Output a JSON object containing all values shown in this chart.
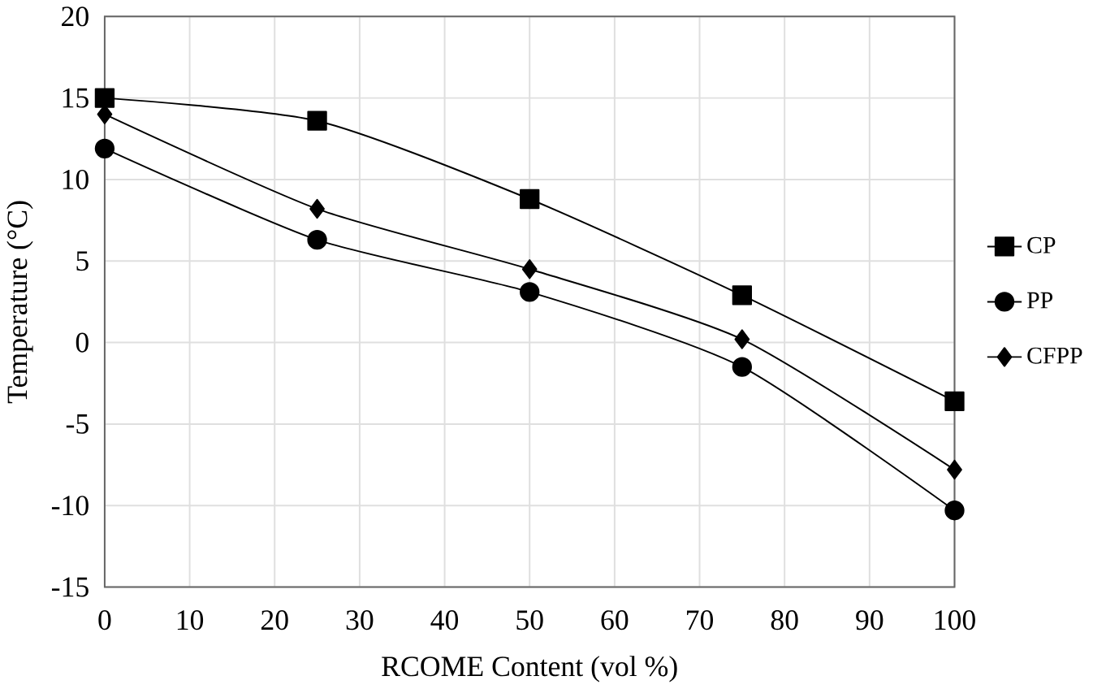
{
  "chart_data": {
    "type": "line",
    "xlabel": "RCOME  Content (vol %)",
    "ylabel": "Temperature (°C)",
    "x": [
      0,
      25,
      50,
      75,
      100
    ],
    "series": [
      {
        "name": "CP",
        "color": "#000000",
        "marker": "square",
        "values": [
          15.0,
          13.6,
          8.8,
          2.9,
          -3.6
        ]
      },
      {
        "name": "PP",
        "color": "#000000",
        "marker": "circle",
        "values": [
          11.9,
          6.3,
          3.1,
          -1.5,
          -10.3
        ]
      },
      {
        "name": "CFPP",
        "color": "#000000",
        "marker": "diamond",
        "values": [
          14.0,
          8.2,
          4.5,
          0.2,
          -7.8
        ]
      }
    ],
    "xlim": [
      0,
      100
    ],
    "ylim": [
      -15,
      20
    ],
    "xticks": [
      0,
      10,
      20,
      30,
      40,
      50,
      60,
      70,
      80,
      90,
      100
    ],
    "yticks": [
      -15,
      -10,
      -5,
      0,
      5,
      10,
      15,
      20
    ],
    "grid": true,
    "legend": "right",
    "line_style": "solid"
  }
}
